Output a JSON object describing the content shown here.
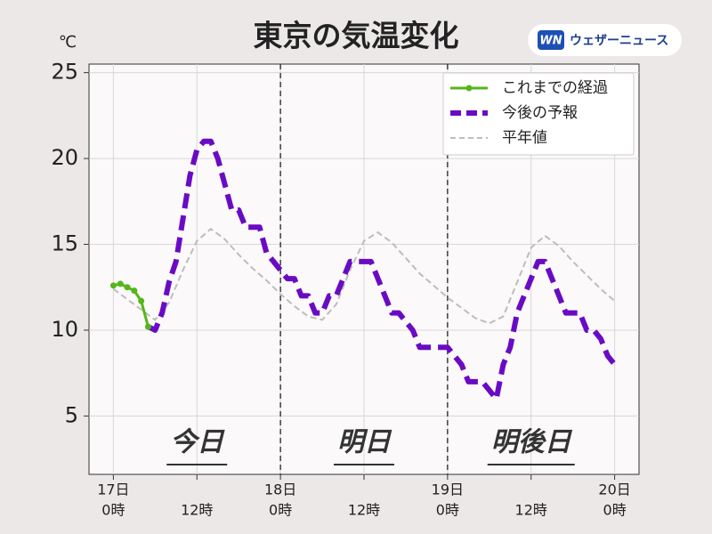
{
  "chart_data": {
    "type": "line",
    "title": "東京の気温変化",
    "source_logo": {
      "mark": "WN",
      "text": "ウェザーニュース"
    },
    "y_unit": "℃",
    "xlim": [
      -3.5,
      75.5
    ],
    "ylim": [
      1.6,
      25.5
    ],
    "yticks": [
      5,
      10,
      15,
      20,
      25
    ],
    "xticks": [
      {
        "value": 0,
        "label": "17日",
        "sublabel": "0時"
      },
      {
        "value": 12,
        "label": "12時"
      },
      {
        "value": 24,
        "label": "18日",
        "sublabel": "0時"
      },
      {
        "value": 36,
        "label": "12時"
      },
      {
        "value": 48,
        "label": "19日",
        "sublabel": "0時"
      },
      {
        "value": 60,
        "label": "12時"
      },
      {
        "value": 72,
        "label": "20日",
        "sublabel": "0時"
      }
    ],
    "grid": true,
    "dividers": [
      24,
      48
    ],
    "day_labels": [
      {
        "text": "今日",
        "x": 12
      },
      {
        "text": "明日",
        "x": 36
      },
      {
        "text": "明後日",
        "x": 60
      }
    ],
    "legend": "upper right",
    "series": [
      {
        "name": "これまでの経過",
        "color": "#55b51b",
        "style": "solid-markers",
        "x": [
          0,
          1,
          2,
          3,
          4,
          5
        ],
        "values": [
          12.6,
          12.7,
          12.5,
          12.3,
          11.7,
          10.2
        ]
      },
      {
        "name": "今後の予報",
        "color": "#6a0bc4",
        "style": "thick-dash",
        "x": [
          5,
          6,
          7,
          8,
          9,
          10,
          11,
          12,
          13,
          14,
          15,
          16,
          17,
          18,
          19,
          20,
          21,
          22,
          23,
          24,
          25,
          26,
          27,
          28,
          29,
          30,
          31,
          32,
          33,
          34,
          35,
          36,
          37,
          38,
          39,
          40,
          41,
          42,
          43,
          44,
          45,
          46,
          47,
          48,
          49,
          50,
          51,
          52,
          53,
          54,
          55,
          56,
          57,
          58,
          59,
          60,
          61,
          62,
          63,
          64,
          65,
          66,
          67,
          68,
          69,
          70,
          71,
          72
        ],
        "values": [
          10.2,
          10.0,
          11.0,
          12.8,
          14,
          16.5,
          19,
          20.5,
          21,
          21,
          20,
          18.5,
          17,
          17,
          16,
          16,
          16,
          14.5,
          14,
          13.5,
          13,
          13,
          12,
          12,
          11,
          11,
          12,
          12,
          13,
          14,
          14,
          14,
          14,
          13,
          12,
          11,
          11,
          10.5,
          10,
          9,
          9,
          9,
          9,
          9,
          8.5,
          8,
          7,
          7,
          7,
          6.5,
          6,
          8,
          9,
          11,
          12,
          13,
          14,
          14,
          13,
          12,
          11,
          11,
          11,
          10,
          10,
          9.5,
          8.5,
          8
        ]
      },
      {
        "name": "平年値",
        "color": "#bdbdbd",
        "style": "thin-dash",
        "x": [
          0,
          2,
          4,
          6,
          8,
          10,
          12,
          14,
          16,
          18,
          20,
          22,
          24,
          26,
          28,
          30,
          32,
          34,
          36,
          38,
          40,
          42,
          44,
          46,
          48,
          50,
          52,
          54,
          56,
          58,
          60,
          62,
          64,
          66,
          68,
          70,
          72
        ],
        "values": [
          12.4,
          11.8,
          11.2,
          10.6,
          11.6,
          13.5,
          15.2,
          15.9,
          15.3,
          14.4,
          13.6,
          12.9,
          12.1,
          11.4,
          10.8,
          10.6,
          11.5,
          13.5,
          15.2,
          15.7,
          15.1,
          14.2,
          13.3,
          12.6,
          11.9,
          11.3,
          10.7,
          10.4,
          10.8,
          12.8,
          14.8,
          15.5,
          14.9,
          14.0,
          13.2,
          12.4,
          11.7
        ]
      }
    ]
  }
}
